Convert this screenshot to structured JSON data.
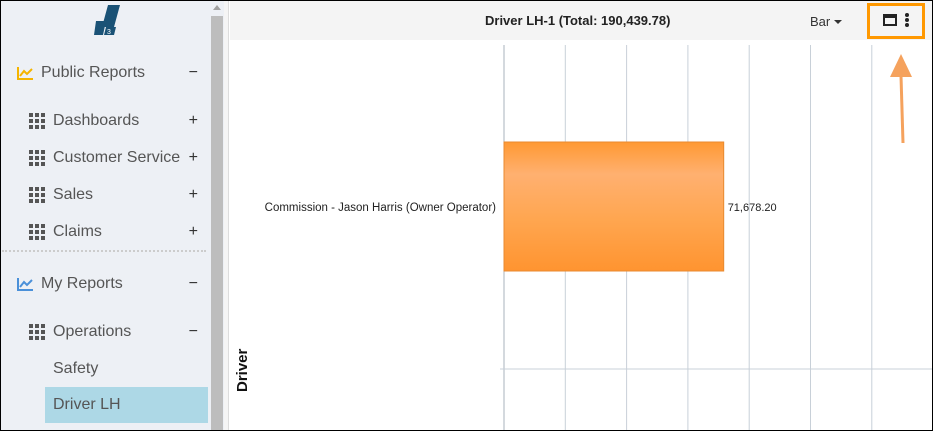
{
  "sidebar": {
    "sections": [
      {
        "label": "Public Reports",
        "sign": "−",
        "icon": "line-chart-icon",
        "icon_color": "#f5b400"
      },
      {
        "label": "My Reports",
        "sign": "−",
        "icon": "line-chart-icon",
        "icon_color": "#4a90d9"
      }
    ],
    "public_items": [
      {
        "label": "Dashboards",
        "sign": "+"
      },
      {
        "label": "Customer Service",
        "sign": "+"
      },
      {
        "label": "Sales",
        "sign": "+"
      },
      {
        "label": "Claims",
        "sign": "+"
      }
    ],
    "operations": {
      "label": "Operations",
      "sign": "−"
    },
    "reports": [
      {
        "label": "Safety"
      },
      {
        "label": "Driver LH",
        "active": true
      }
    ]
  },
  "header": {
    "title": "Driver LH-1 (Total: 190,439.78)",
    "chart_type": "Bar"
  },
  "colors": {
    "accent": "#ff9800",
    "bar": "#ff9933",
    "active": "#add8e6"
  },
  "chart_data": {
    "type": "bar",
    "orientation": "horizontal",
    "categories": [
      "Commission - Jason Harris (Owner Operator)"
    ],
    "values": [
      71678.2
    ],
    "data_labels": [
      "71,678.20"
    ],
    "ylabel": "Driver",
    "xlim": [
      0,
      140000
    ],
    "grid": true
  }
}
